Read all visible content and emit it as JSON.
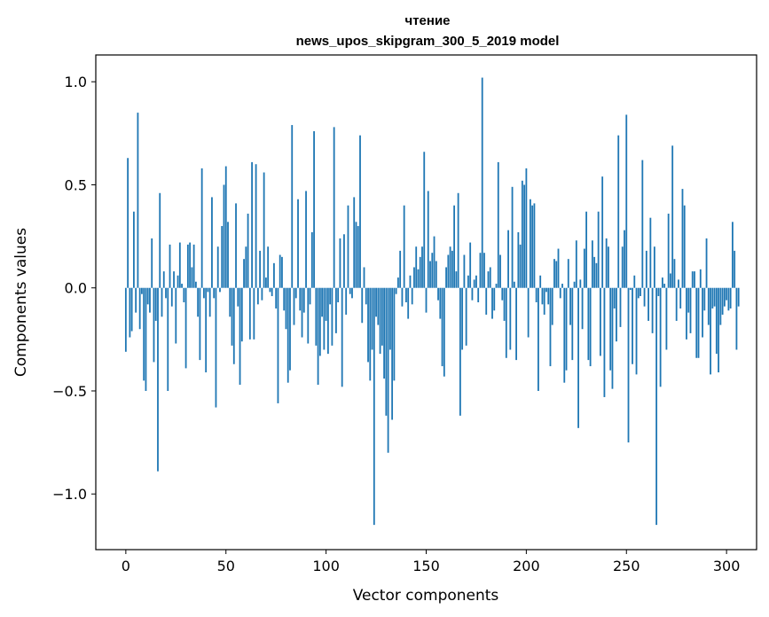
{
  "chart_data": {
    "type": "bar",
    "title": "чтение",
    "subtitle": "news_upos_skipgram_300_5_2019 model",
    "xlabel": "Vector components",
    "ylabel": "Components values",
    "xlim": [
      -15,
      315
    ],
    "ylim": [
      -1.27,
      1.13
    ],
    "xticks": [
      0,
      50,
      100,
      150,
      200,
      250,
      300
    ],
    "xtick_labels": [
      "0",
      "50",
      "100",
      "150",
      "200",
      "250",
      "300"
    ],
    "yticks": [
      -1.0,
      -0.5,
      0.0,
      0.5,
      1.0
    ],
    "ytick_labels": [
      "−1.0",
      "−0.5",
      "0.0",
      "0.5",
      "1.0"
    ],
    "bar_color": "#1f77b4",
    "grid": false,
    "legend": "none",
    "values": [
      -0.31,
      0.63,
      -0.24,
      -0.21,
      0.37,
      -0.12,
      0.85,
      -0.2,
      -0.03,
      -0.45,
      -0.5,
      -0.08,
      -0.12,
      0.24,
      -0.36,
      -0.16,
      -0.89,
      0.46,
      -0.14,
      0.08,
      -0.05,
      -0.5,
      0.21,
      -0.09,
      0.08,
      -0.27,
      0.06,
      0.22,
      0.02,
      -0.07,
      -0.39,
      0.21,
      0.22,
      0.1,
      0.21,
      0.03,
      -0.14,
      -0.35,
      0.58,
      -0.05,
      -0.41,
      -0.02,
      -0.14,
      0.44,
      -0.05,
      -0.58,
      0.2,
      -0.02,
      0.3,
      0.5,
      0.59,
      0.32,
      -0.14,
      -0.28,
      -0.37,
      0.41,
      -0.09,
      -0.47,
      -0.26,
      0.14,
      0.2,
      0.36,
      -0.25,
      0.61,
      -0.25,
      0.6,
      -0.08,
      0.18,
      -0.06,
      0.56,
      0.05,
      0.2,
      -0.02,
      -0.04,
      0.12,
      -0.1,
      -0.56,
      0.16,
      0.15,
      -0.11,
      -0.2,
      -0.46,
      -0.4,
      0.79,
      -0.18,
      -0.05,
      0.43,
      -0.11,
      -0.24,
      -0.12,
      0.47,
      -0.27,
      -0.08,
      0.27,
      0.76,
      -0.28,
      -0.47,
      -0.33,
      -0.14,
      -0.3,
      -0.16,
      -0.32,
      -0.08,
      -0.28,
      0.78,
      -0.22,
      -0.07,
      0.24,
      -0.48,
      0.26,
      -0.13,
      0.4,
      -0.03,
      -0.05,
      0.44,
      0.32,
      0.3,
      0.74,
      -0.17,
      0.1,
      -0.08,
      -0.36,
      -0.45,
      -0.3,
      -1.15,
      -0.14,
      -0.18,
      -0.32,
      -0.28,
      -0.44,
      -0.62,
      -0.8,
      -0.3,
      -0.64,
      -0.45,
      -0.03,
      0.05,
      0.18,
      -0.09,
      0.4,
      -0.07,
      -0.15,
      0.06,
      -0.08,
      0.1,
      0.2,
      0.09,
      0.15,
      0.2,
      0.66,
      -0.12,
      0.47,
      0.13,
      0.17,
      0.25,
      0.13,
      -0.06,
      -0.15,
      -0.38,
      -0.43,
      0.1,
      0.16,
      0.2,
      0.18,
      0.4,
      0.08,
      0.46,
      -0.62,
      -0.3,
      0.16,
      -0.28,
      0.06,
      0.22,
      -0.06,
      0.04,
      0.06,
      -0.07,
      0.17,
      1.02,
      0.17,
      -0.13,
      0.08,
      0.1,
      -0.15,
      -0.11,
      0.02,
      0.61,
      0.16,
      -0.06,
      -0.16,
      -0.34,
      0.28,
      -0.3,
      0.49,
      0.03,
      -0.35,
      0.27,
      0.21,
      0.52,
      0.5,
      0.58,
      -0.24,
      0.43,
      0.4,
      0.41,
      -0.07,
      -0.5,
      0.06,
      -0.08,
      -0.13,
      -0.02,
      -0.08,
      -0.38,
      -0.18,
      0.14,
      0.13,
      0.19,
      -0.05,
      0.02,
      -0.46,
      -0.4,
      0.14,
      -0.18,
      -0.35,
      0.03,
      0.23,
      -0.68,
      0.04,
      -0.2,
      0.19,
      0.37,
      -0.35,
      -0.38,
      0.23,
      0.15,
      0.12,
      0.37,
      -0.33,
      0.54,
      -0.53,
      0.24,
      0.2,
      -0.4,
      -0.49,
      -0.1,
      -0.26,
      0.74,
      -0.19,
      0.2,
      0.28,
      0.84,
      -0.75,
      -0.01,
      -0.37,
      0.06,
      -0.42,
      -0.05,
      -0.04,
      0.62,
      -0.09,
      0.18,
      -0.16,
      0.34,
      -0.22,
      0.2,
      -1.15,
      -0.04,
      -0.48,
      0.05,
      0.02,
      -0.3,
      0.36,
      0.07,
      0.69,
      0.14,
      -0.16,
      0.04,
      -0.1,
      0.48,
      0.4,
      -0.25,
      -0.12,
      -0.22,
      0.08,
      0.08,
      -0.34,
      -0.34,
      0.09,
      -0.24,
      -0.11,
      0.24,
      -0.18,
      -0.42,
      -0.1,
      -0.09,
      -0.32,
      -0.41,
      -0.18,
      -0.13,
      -0.09,
      -0.06,
      -0.11,
      -0.1,
      0.32,
      0.18,
      -0.3,
      -0.09
    ]
  }
}
